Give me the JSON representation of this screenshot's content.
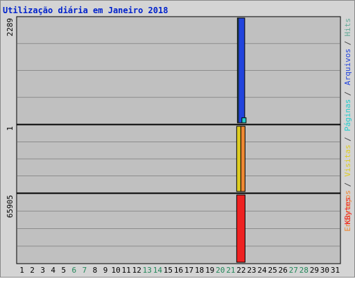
{
  "chart_data": {
    "type": "bar",
    "title": "Utilização diária em Janeiro 2018",
    "categories": [
      "1",
      "2",
      "3",
      "4",
      "5",
      "6",
      "7",
      "8",
      "9",
      "10",
      "11",
      "12",
      "13",
      "14",
      "15",
      "16",
      "17",
      "18",
      "19",
      "20",
      "21",
      "22",
      "23",
      "24",
      "25",
      "26",
      "27",
      "28",
      "29",
      "30",
      "31"
    ],
    "weekend_days": [
      "6",
      "7",
      "13",
      "14",
      "20",
      "21",
      "27",
      "28"
    ],
    "legend_right": [
      {
        "label": "Hits",
        "color": "#66aa99"
      },
      {
        "label": "/",
        "color": "#444444"
      },
      {
        "label": "Arquivos",
        "color": "#2244dd"
      },
      {
        "label": "/",
        "color": "#444444"
      },
      {
        "label": "Páginas",
        "color": "#22cccc"
      },
      {
        "label": "/",
        "color": "#444444"
      },
      {
        "label": "Visitas",
        "color": "#ddcc22"
      },
      {
        "label": "/",
        "color": "#444444"
      },
      {
        "label": "Endereços",
        "color": "#ee8833"
      },
      {
        "label": "KBytes",
        "color": "#ee2222"
      }
    ],
    "panels": [
      {
        "name": "hits-files-pages",
        "axis_label": "2289",
        "ymax": 2289,
        "series": [
          {
            "name": "Hits",
            "color": "#66aa99",
            "values": [
              0,
              0,
              0,
              0,
              0,
              0,
              0,
              0,
              0,
              0,
              0,
              0,
              0,
              0,
              0,
              0,
              0,
              0,
              0,
              0,
              0,
              2289,
              0,
              0,
              0,
              0,
              0,
              0,
              0,
              0,
              0
            ]
          },
          {
            "name": "Arquivos",
            "color": "#2244dd",
            "values": [
              0,
              0,
              0,
              0,
              0,
              0,
              0,
              0,
              0,
              0,
              0,
              0,
              0,
              0,
              0,
              0,
              0,
              0,
              0,
              0,
              0,
              2289,
              0,
              0,
              0,
              0,
              0,
              0,
              0,
              0,
              0
            ]
          },
          {
            "name": "Páginas",
            "color": "#22cccc",
            "values": [
              0,
              0,
              0,
              0,
              0,
              0,
              0,
              0,
              0,
              0,
              0,
              0,
              0,
              0,
              0,
              0,
              0,
              0,
              0,
              0,
              0,
              110,
              0,
              0,
              0,
              0,
              0,
              0,
              0,
              0,
              0
            ]
          }
        ]
      },
      {
        "name": "visits-addresses",
        "axis_label": "1",
        "ymax": 1,
        "series": [
          {
            "name": "Visitas",
            "color": "#ddcc22",
            "values": [
              0,
              0,
              0,
              0,
              0,
              0,
              0,
              0,
              0,
              0,
              0,
              0,
              0,
              0,
              0,
              0,
              0,
              0,
              0,
              0,
              0,
              1,
              0,
              0,
              0,
              0,
              0,
              0,
              0,
              0,
              0
            ]
          },
          {
            "name": "Endereços",
            "color": "#ee8833",
            "values": [
              0,
              0,
              0,
              0,
              0,
              0,
              0,
              0,
              0,
              0,
              0,
              0,
              0,
              0,
              0,
              0,
              0,
              0,
              0,
              0,
              0,
              1,
              0,
              0,
              0,
              0,
              0,
              0,
              0,
              0,
              0
            ]
          }
        ]
      },
      {
        "name": "kbytes",
        "axis_label": "65905",
        "ymax": 65905,
        "series": [
          {
            "name": "KBytes",
            "color": "#ee2222",
            "values": [
              0,
              0,
              0,
              0,
              0,
              0,
              0,
              0,
              0,
              0,
              0,
              0,
              0,
              0,
              0,
              0,
              0,
              0,
              0,
              0,
              0,
              65905,
              0,
              0,
              0,
              0,
              0,
              0,
              0,
              0,
              0
            ]
          }
        ]
      }
    ]
  }
}
